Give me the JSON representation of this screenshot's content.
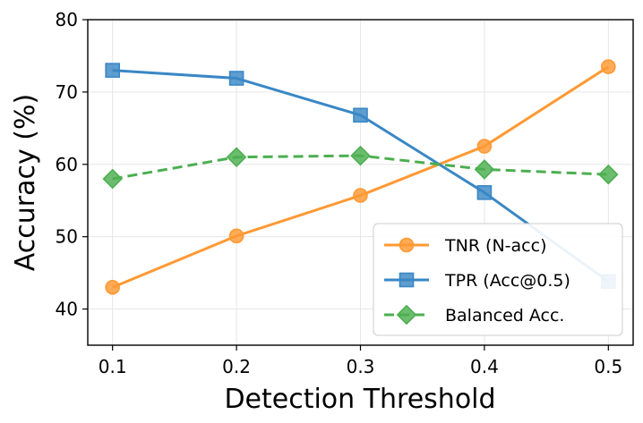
{
  "chart_data": {
    "type": "line",
    "xlabel": "Detection Threshold",
    "ylabel": "Accuracy (%)",
    "x": [
      0.1,
      0.2,
      0.3,
      0.4,
      0.5
    ],
    "x_tick_labels": [
      "0.1",
      "0.2",
      "0.3",
      "0.4",
      "0.5"
    ],
    "y_tick_values": [
      40,
      50,
      60,
      70,
      80
    ],
    "y_tick_labels": [
      "40",
      "50",
      "60",
      "70",
      "80"
    ],
    "xlim": [
      0.08,
      0.52
    ],
    "ylim": [
      35,
      80
    ],
    "grid": true,
    "legend_position": "lower-right",
    "series": [
      {
        "name": "TNR (N-acc)",
        "values": [
          43.0,
          50.1,
          55.7,
          62.5,
          73.5
        ],
        "color": "#ff9933",
        "marker": "circle",
        "linestyle": "solid"
      },
      {
        "name": "TPR (Acc@0.5)",
        "values": [
          73.0,
          71.9,
          66.8,
          56.1,
          43.8
        ],
        "color": "#3a87c5",
        "marker": "square",
        "linestyle": "solid"
      },
      {
        "name": "Balanced Acc.",
        "values": [
          58.0,
          61.0,
          61.2,
          59.3,
          58.6
        ],
        "color": "#4caf50",
        "marker": "diamond",
        "linestyle": "dashed"
      }
    ]
  }
}
